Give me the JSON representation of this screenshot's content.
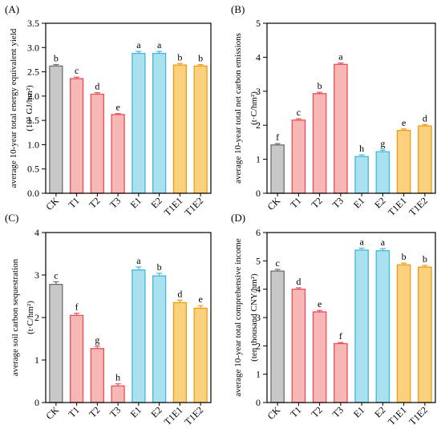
{
  "chart_data": [
    {
      "panel_label": "(A)",
      "type": "bar",
      "ylabel_line1": "average 10-year total energy equivalent yield",
      "ylabel_line2": "(10⁵ GJ/hm²)",
      "categories": [
        "CK",
        "T1",
        "T2",
        "T3",
        "E1",
        "E2",
        "T1E1",
        "T1E2"
      ],
      "values": [
        2.62,
        2.36,
        2.04,
        1.62,
        2.88,
        2.88,
        2.64,
        2.62
      ],
      "errors": [
        0.03,
        0.03,
        0.03,
        0.02,
        0.04,
        0.04,
        0.03,
        0.03
      ],
      "letters": [
        "b",
        "c",
        "d",
        "e",
        "a",
        "a",
        "b",
        "b"
      ],
      "ylim": [
        0,
        3.5
      ],
      "yticks": [
        "0.0",
        "0.5",
        "1.0",
        "1.5",
        "2.0",
        "2.5",
        "3.0",
        "3.5"
      ]
    },
    {
      "panel_label": "(B)",
      "type": "bar",
      "ylabel_line1": "average 10-year total net carbon emissions",
      "ylabel_line2": "(t·C/hm²)",
      "categories": [
        "CK",
        "T1",
        "T2",
        "T3",
        "E1",
        "E2",
        "T1E1",
        "T1E2"
      ],
      "values": [
        1.42,
        2.15,
        2.93,
        3.79,
        1.08,
        1.22,
        1.85,
        1.98
      ],
      "errors": [
        0.04,
        0.04,
        0.04,
        0.04,
        0.05,
        0.05,
        0.04,
        0.04
      ],
      "letters": [
        "f",
        "c",
        "b",
        "a",
        "h",
        "g",
        "e",
        "d"
      ],
      "ylim": [
        0,
        5
      ],
      "yticks": [
        "0",
        "1",
        "2",
        "3",
        "4",
        "5"
      ]
    },
    {
      "panel_label": "(C)",
      "type": "bar",
      "ylabel_line1": "average soil carbon sequestration",
      "ylabel_line2": "(t·C/hm²)",
      "categories": [
        "CK",
        "T1",
        "T2",
        "T3",
        "E1",
        "E2",
        "T1E1",
        "T1E2"
      ],
      "values": [
        2.78,
        2.05,
        1.27,
        0.39,
        3.12,
        2.98,
        2.35,
        2.22
      ],
      "errors": [
        0.06,
        0.05,
        0.05,
        0.05,
        0.07,
        0.06,
        0.06,
        0.06
      ],
      "letters": [
        "c",
        "f",
        "g",
        "h",
        "a",
        "b",
        "d",
        "e"
      ],
      "ylim": [
        0,
        4
      ],
      "yticks": [
        "0",
        "1",
        "2",
        "3",
        "4"
      ]
    },
    {
      "panel_label": "(D)",
      "type": "bar",
      "ylabel_line1": "average 10-year total comprehensive income",
      "ylabel_line2": "(ten thousand CNY/hm²)",
      "categories": [
        "CK",
        "T1",
        "T2",
        "T3",
        "E1",
        "E2",
        "T1E1",
        "T1E2"
      ],
      "values": [
        4.64,
        4.0,
        3.2,
        2.08,
        5.38,
        5.36,
        4.86,
        4.78
      ],
      "errors": [
        0.06,
        0.05,
        0.05,
        0.04,
        0.07,
        0.07,
        0.06,
        0.06
      ],
      "letters": [
        "c",
        "d",
        "e",
        "f",
        "a",
        "a",
        "b",
        "b"
      ],
      "ylim": [
        0,
        6
      ],
      "yticks": [
        "0",
        "1",
        "2",
        "3",
        "4",
        "5",
        "6"
      ]
    }
  ],
  "colors": {
    "CK": {
      "fill": "#c8c8c8",
      "edge": "#6e6e6e"
    },
    "T": {
      "fill": "#f6b7b5",
      "edge": "#e8505a"
    },
    "E": {
      "fill": "#a9e1ef",
      "edge": "#44b7dc"
    },
    "TE": {
      "fill": "#fcd17e",
      "edge": "#f29a17"
    }
  }
}
